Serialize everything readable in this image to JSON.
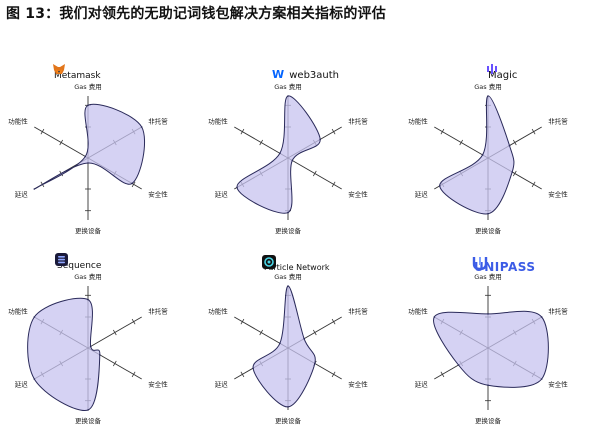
{
  "title": "图 13：我们对领先的无助记词钱包解决方案相关指标的评估",
  "colors": {
    "fill": "#c7c3ef",
    "outline": "#2a2a5a",
    "axis": "#333333",
    "metamask_orange": "#e2761b",
    "web3auth_blue": "#0364ff",
    "magic_purple": "#6851ff",
    "unipass_blue": "#3c5ce6"
  },
  "chart_data": [
    {
      "type": "radar",
      "brand": {
        "name": "Metamask",
        "icon": "fox-icon"
      },
      "axes": [
        "Gas 费用",
        "非托管",
        "安全性",
        "更换设备",
        "延迟",
        "功能性"
      ],
      "values": [
        0.85,
        1.0,
        0.82,
        0.08,
        1.0,
        0.05
      ]
    },
    {
      "type": "radar",
      "brand": {
        "name": "web3auth",
        "icon": "web3auth-w-icon"
      },
      "axes": [
        "Gas 费用",
        "非托管",
        "安全性",
        "更换设备",
        "延迟",
        "功能性"
      ],
      "values": [
        1.0,
        0.6,
        0.08,
        0.88,
        0.95,
        0.15
      ]
    },
    {
      "type": "radar",
      "brand": {
        "name": "Magic",
        "icon": "magic-icon"
      },
      "axes": [
        "Gas 费用",
        "非托管",
        "安全性",
        "更换设备",
        "延迟",
        "功能性"
      ],
      "values": [
        1.0,
        0.4,
        0.45,
        0.9,
        0.9,
        0.1
      ]
    },
    {
      "type": "radar",
      "brand": {
        "name": "Sequence",
        "icon": "sequence-icon"
      },
      "axes": [
        "Gas 费用",
        "非托管",
        "安全性",
        "更换设备",
        "延迟",
        "功能性"
      ],
      "values": [
        0.78,
        0.05,
        0.22,
        1.0,
        1.0,
        1.0
      ]
    },
    {
      "type": "radar",
      "brand": {
        "name": "Particle Network",
        "icon": "particle-network-icon"
      },
      "axes": [
        "Gas 费用",
        "非托管",
        "安全性",
        "更换设备",
        "延迟",
        "功能性"
      ],
      "values": [
        1.0,
        0.3,
        0.5,
        0.95,
        0.65,
        0.15
      ]
    },
    {
      "type": "radar",
      "brand": {
        "name": "UNIPASS",
        "icon": "unipass-u-icon"
      },
      "axes": [
        "Gas 费用",
        "非托管",
        "安全性",
        "更换设备",
        "延迟",
        "功能性"
      ],
      "values": [
        0.55,
        1.0,
        1.0,
        0.6,
        0.55,
        1.0
      ]
    }
  ]
}
